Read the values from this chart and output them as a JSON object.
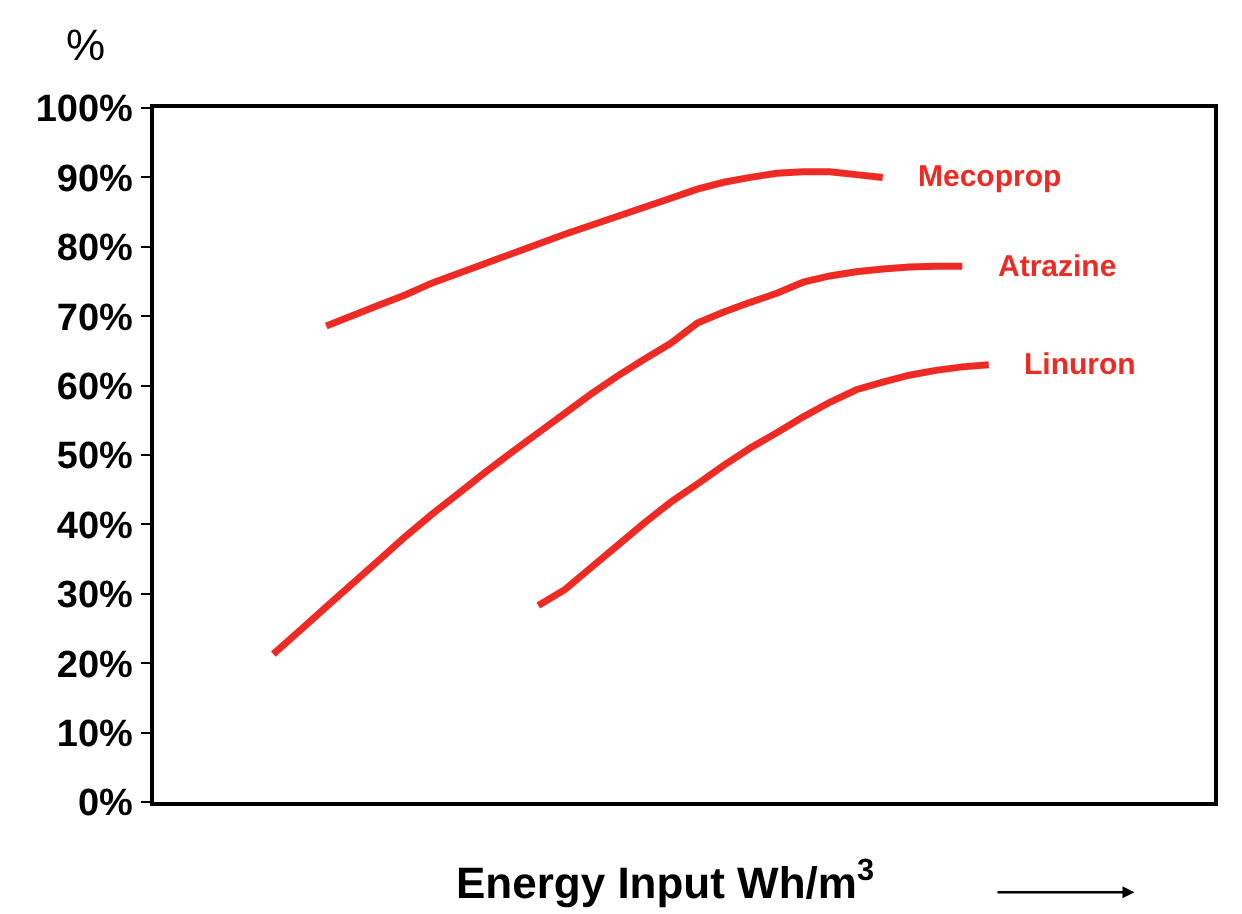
{
  "chart_data": {
    "type": "line",
    "xlabel": "Energy Input Wh/m$^{3}$",
    "ylabel": "%",
    "categories": [
      null,
      null,
      null,
      null,
      null,
      null,
      null,
      null,
      null,
      null,
      null,
      null,
      null,
      null,
      null,
      null,
      null,
      null,
      null,
      null,
      null,
      null,
      null,
      null,
      null,
      null,
      null,
      null,
      null,
      null,
      null,
      null,
      null,
      null,
      null,
      null,
      null,
      null,
      null,
      null
    ],
    "series": [
      {
        "name": "Mecoprop",
        "color": "#ee2a24",
        "values": [
          null,
          null,
          null,
          null,
          null,
          null,
          68.6,
          70.1,
          71.6,
          73.1,
          74.8,
          76.2,
          77.6,
          79.0,
          80.4,
          81.8,
          83.1,
          84.4,
          85.7,
          87.0,
          88.3,
          89.3,
          90.0,
          90.6,
          90.8,
          90.8,
          90.4,
          90.0,
          null,
          null,
          null,
          null,
          null,
          null,
          null,
          null,
          null,
          null,
          null,
          null
        ]
      },
      {
        "name": "Atrazine",
        "color": "#ee2a24",
        "values": [
          null,
          null,
          null,
          null,
          21.3,
          24.7,
          28.1,
          31.5,
          34.9,
          38.3,
          41.5,
          44.5,
          47.5,
          50.4,
          53.2,
          56.0,
          58.8,
          61.4,
          63.8,
          66.1,
          69.0,
          70.6,
          72.0,
          73.3,
          74.9,
          75.8,
          76.4,
          76.8,
          77.1,
          77.2,
          77.2,
          null,
          null,
          null,
          null,
          null,
          null,
          null,
          null,
          null
        ]
      },
      {
        "name": "Linuron",
        "color": "#ee2a24",
        "values": [
          null,
          null,
          null,
          null,
          null,
          null,
          null,
          null,
          null,
          null,
          null,
          null,
          null,
          null,
          28.3,
          30.6,
          33.8,
          37.0,
          40.2,
          43.2,
          45.8,
          48.5,
          51.0,
          53.2,
          55.5,
          57.6,
          59.4,
          60.5,
          61.5,
          62.2,
          62.7,
          63.0,
          null,
          null,
          null,
          null,
          null,
          null,
          null,
          null
        ]
      }
    ],
    "ylim": [
      0,
      100
    ],
    "yticks": [
      {
        "value": 0,
        "label": "0%"
      },
      {
        "value": 10,
        "label": "10%"
      },
      {
        "value": 20,
        "label": "20%"
      },
      {
        "value": 30,
        "label": "30%"
      },
      {
        "value": 40,
        "label": "40%"
      },
      {
        "value": 50,
        "label": "50%"
      },
      {
        "value": 60,
        "label": "60%"
      },
      {
        "value": 70,
        "label": "70%"
      },
      {
        "value": 80,
        "label": "80%"
      },
      {
        "value": 90,
        "label": "90%"
      },
      {
        "value": 100,
        "label": "100%"
      }
    ],
    "tick_labels": "y",
    "marker": "none",
    "line_style": "solid"
  }
}
